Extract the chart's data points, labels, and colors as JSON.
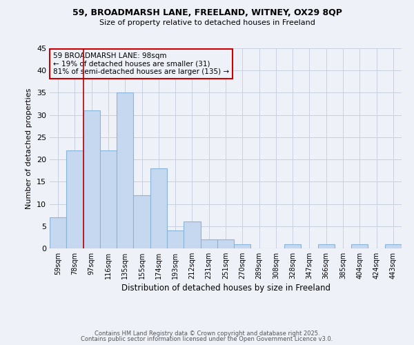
{
  "title1": "59, BROADMARSH LANE, FREELAND, WITNEY, OX29 8QP",
  "title2": "Size of property relative to detached houses in Freeland",
  "xlabel": "Distribution of detached houses by size in Freeland",
  "ylabel": "Number of detached properties",
  "categories": [
    "59sqm",
    "78sqm",
    "97sqm",
    "116sqm",
    "135sqm",
    "155sqm",
    "174sqm",
    "193sqm",
    "212sqm",
    "231sqm",
    "251sqm",
    "270sqm",
    "289sqm",
    "308sqm",
    "328sqm",
    "347sqm",
    "366sqm",
    "385sqm",
    "404sqm",
    "424sqm",
    "443sqm"
  ],
  "values": [
    7,
    22,
    31,
    22,
    35,
    12,
    18,
    4,
    6,
    2,
    2,
    1,
    0,
    0,
    1,
    0,
    1,
    0,
    1,
    0,
    1
  ],
  "bar_color": "#c5d8f0",
  "bar_edgecolor": "#89b4d8",
  "grid_color": "#c8d0e0",
  "background_color": "#eef2f8",
  "vline_index": 2,
  "vline_color": "#bb0000",
  "annotation_text": "59 BROADMARSH LANE: 98sqm\n← 19% of detached houses are smaller (31)\n81% of semi-detached houses are larger (135) →",
  "annotation_box_edgecolor": "#cc0000",
  "ylim": [
    0,
    45
  ],
  "yticks": [
    0,
    5,
    10,
    15,
    20,
    25,
    30,
    35,
    40,
    45
  ],
  "footer1": "Contains HM Land Registry data © Crown copyright and database right 2025.",
  "footer2": "Contains public sector information licensed under the Open Government Licence v3.0."
}
